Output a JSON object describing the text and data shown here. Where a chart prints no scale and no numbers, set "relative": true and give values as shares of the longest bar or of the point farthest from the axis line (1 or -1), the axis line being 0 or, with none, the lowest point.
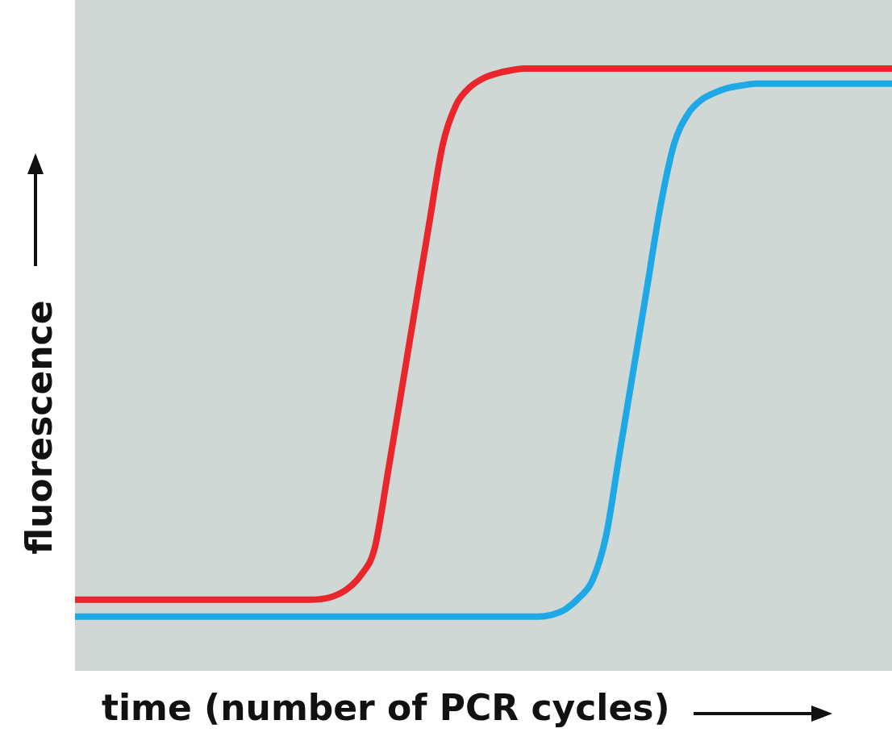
{
  "chart_data": {
    "type": "line",
    "relative": true,
    "xlabel": "time (number of PCR cycles)",
    "ylabel": "fluorescence",
    "categories": [
      null,
      null,
      null,
      null,
      null,
      null,
      null,
      null,
      null,
      null,
      null,
      null,
      null,
      null,
      null,
      null,
      null,
      null,
      null,
      null,
      null,
      null,
      null,
      null,
      null,
      null,
      null,
      null,
      null,
      null,
      null,
      null,
      null,
      null,
      null,
      null,
      null,
      null,
      null,
      null,
      null,
      null,
      null,
      null,
      null,
      null,
      null,
      null,
      null,
      null,
      null,
      null,
      null,
      null,
      null,
      null,
      null,
      null,
      null,
      null,
      null
    ],
    "series": [
      {
        "color": "#e8262b",
        "values": [
          0.118,
          0.118,
          0.118,
          0.118,
          0.118,
          0.118,
          0.118,
          0.118,
          0.118,
          0.118,
          0.118,
          0.118,
          0.118,
          0.118,
          0.118,
          0.118,
          0.118,
          0.118,
          0.119,
          0.124,
          0.136,
          0.159,
          0.203,
          0.332,
          0.468,
          0.605,
          0.741,
          0.873,
          0.94,
          0.969,
          0.984,
          0.992,
          0.997,
          1,
          1,
          1,
          1,
          1,
          1,
          1,
          1,
          1,
          1,
          1,
          1,
          1,
          1,
          1,
          1,
          1,
          1,
          1,
          1,
          1,
          1,
          1,
          1,
          1,
          1,
          1,
          1
        ]
      },
      {
        "color": "#1ea9e6",
        "values": [
          0.09,
          0.09,
          0.09,
          0.09,
          0.09,
          0.09,
          0.09,
          0.09,
          0.09,
          0.09,
          0.09,
          0.09,
          0.09,
          0.09,
          0.09,
          0.09,
          0.09,
          0.09,
          0.09,
          0.09,
          0.09,
          0.09,
          0.09,
          0.09,
          0.09,
          0.09,
          0.09,
          0.09,
          0.09,
          0.09,
          0.09,
          0.09,
          0.09,
          0.09,
          0.09,
          0.093,
          0.102,
          0.121,
          0.15,
          0.224,
          0.362,
          0.498,
          0.635,
          0.772,
          0.875,
          0.924,
          0.948,
          0.96,
          0.968,
          0.972,
          0.975,
          0.975,
          0.975,
          0.975,
          0.975,
          0.975,
          0.975,
          0.975,
          0.975,
          0.975,
          0.975
        ]
      }
    ]
  }
}
